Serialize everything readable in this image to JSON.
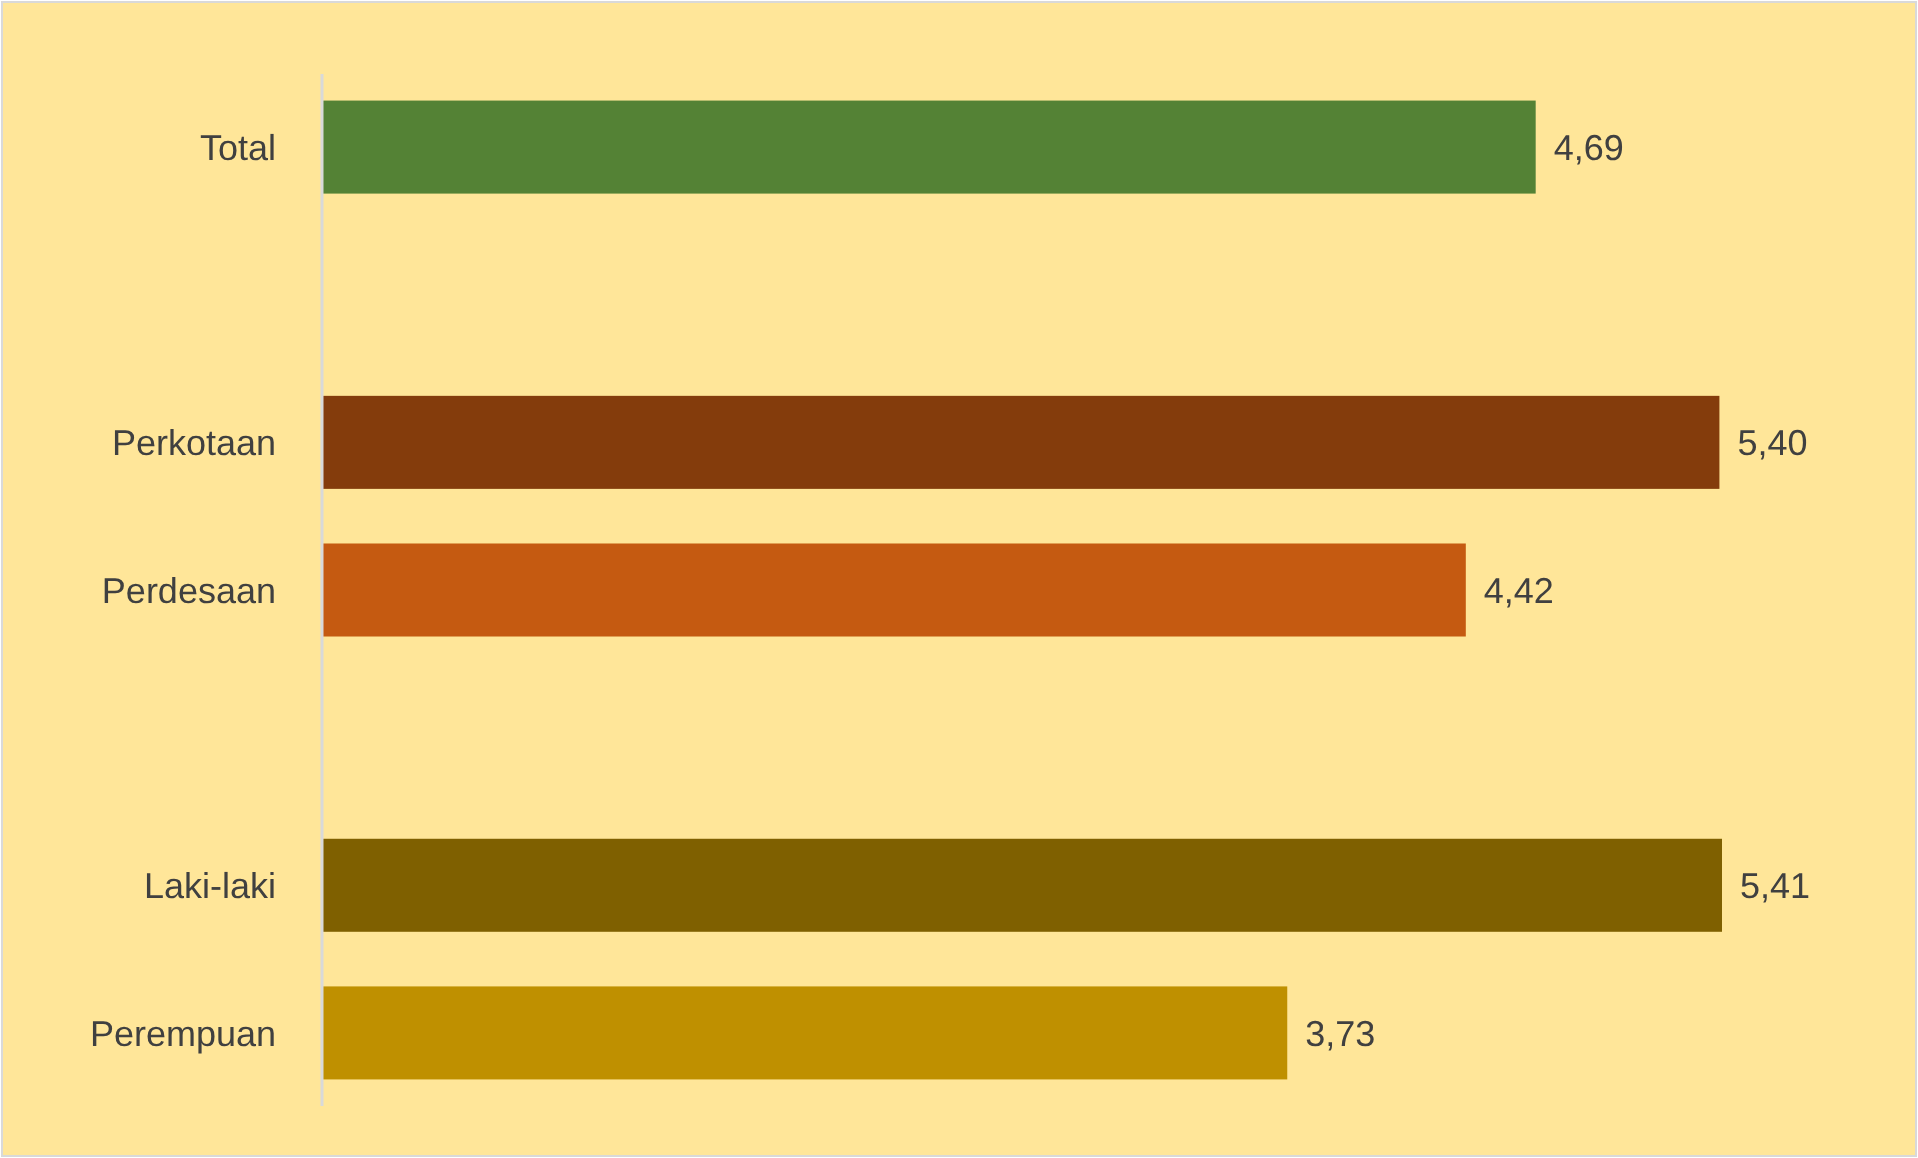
{
  "chart_data": {
    "type": "bar",
    "orientation": "horizontal",
    "categories": [
      "Total",
      null,
      "Perkotaan",
      "Perdesaan",
      null,
      "Laki-laki",
      "Perempuan"
    ],
    "values": [
      4.69,
      null,
      5.4,
      4.42,
      null,
      5.41,
      3.73
    ],
    "colors": [
      "#548235",
      null,
      "#843c0c",
      "#c55a11",
      null,
      "#7f6000",
      "#bf9000"
    ],
    "value_labels": [
      "4,69",
      null,
      "5,40",
      "4,42",
      null,
      "5,41",
      "3,73"
    ]
  }
}
